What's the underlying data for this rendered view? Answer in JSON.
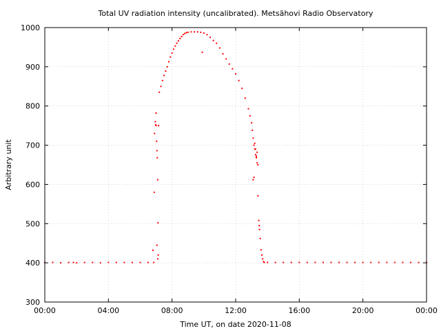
{
  "chart_data": {
    "type": "scatter",
    "title": "Total UV radiation intensity (uncalibrated). Metsähovi Radio Observatory",
    "xlabel": "Time UT, on date 2020-11-08",
    "ylabel": "Arbitrary unit",
    "xlim": [
      0,
      24
    ],
    "ylim": [
      300,
      1000
    ],
    "x_ticks": [
      {
        "value": 0,
        "label": "00:00"
      },
      {
        "value": 4,
        "label": "04:00"
      },
      {
        "value": 8,
        "label": "08:00"
      },
      {
        "value": 12,
        "label": "12:00"
      },
      {
        "value": 16,
        "label": "16:00"
      },
      {
        "value": 20,
        "label": "20:00"
      },
      {
        "value": 24,
        "label": "00:00"
      }
    ],
    "y_ticks": [
      {
        "value": 300,
        "label": "300"
      },
      {
        "value": 400,
        "label": "400"
      },
      {
        "value": 500,
        "label": "500"
      },
      {
        "value": 600,
        "label": "600"
      },
      {
        "value": 700,
        "label": "700"
      },
      {
        "value": 800,
        "label": "800"
      },
      {
        "value": 900,
        "label": "900"
      },
      {
        "value": 1000,
        "label": "1000"
      }
    ],
    "grid": true,
    "series": [
      {
        "color": "#ff0000",
        "points": [
          [
            0.0,
            401
          ],
          [
            0.5,
            401
          ],
          [
            1.0,
            400
          ],
          [
            1.5,
            401
          ],
          [
            1.8,
            401
          ],
          [
            2.0,
            400
          ],
          [
            2.5,
            401
          ],
          [
            3.0,
            401
          ],
          [
            3.5,
            400
          ],
          [
            4.0,
            401
          ],
          [
            4.5,
            401
          ],
          [
            5.0,
            401
          ],
          [
            5.5,
            401
          ],
          [
            6.0,
            401
          ],
          [
            6.5,
            401
          ],
          [
            6.85,
            401
          ],
          [
            6.8,
            432
          ],
          [
            6.88,
            580
          ],
          [
            6.95,
            760
          ],
          [
            6.97,
            752
          ],
          [
            7.0,
            782
          ],
          [
            7.03,
            710
          ],
          [
            7.05,
            686
          ],
          [
            7.07,
            668
          ],
          [
            7.1,
            612
          ],
          [
            7.12,
            502
          ],
          [
            7.05,
            445
          ],
          [
            7.1,
            410
          ],
          [
            7.13,
            420
          ],
          [
            6.9,
            730
          ],
          [
            7.0,
            750
          ],
          [
            7.15,
            750
          ],
          [
            7.2,
            835
          ],
          [
            7.3,
            850
          ],
          [
            7.4,
            865
          ],
          [
            7.5,
            878
          ],
          [
            7.6,
            889
          ],
          [
            7.7,
            900
          ],
          [
            7.8,
            913
          ],
          [
            7.9,
            925
          ],
          [
            8.0,
            935
          ],
          [
            8.1,
            945
          ],
          [
            8.2,
            953
          ],
          [
            8.3,
            960
          ],
          [
            8.4,
            966
          ],
          [
            8.5,
            972
          ],
          [
            8.6,
            977
          ],
          [
            8.7,
            982
          ],
          [
            8.8,
            985
          ],
          [
            8.9,
            987
          ],
          [
            9.0,
            988
          ],
          [
            9.2,
            989
          ],
          [
            9.4,
            989
          ],
          [
            9.6,
            989
          ],
          [
            9.8,
            988
          ],
          [
            9.9,
            937
          ],
          [
            10.0,
            986
          ],
          [
            10.2,
            982
          ],
          [
            10.4,
            975
          ],
          [
            10.6,
            967
          ],
          [
            10.8,
            960
          ],
          [
            11.0,
            948
          ],
          [
            11.2,
            933
          ],
          [
            11.4,
            920
          ],
          [
            11.6,
            907
          ],
          [
            11.8,
            895
          ],
          [
            12.0,
            882
          ],
          [
            12.2,
            865
          ],
          [
            12.4,
            845
          ],
          [
            12.6,
            820
          ],
          [
            12.8,
            793
          ],
          [
            12.9,
            775
          ],
          [
            13.0,
            757
          ],
          [
            13.05,
            738
          ],
          [
            13.1,
            718
          ],
          [
            13.15,
            700
          ],
          [
            13.2,
            690
          ],
          [
            13.25,
            676
          ],
          [
            13.3,
            668
          ],
          [
            13.35,
            655
          ],
          [
            13.4,
            650
          ],
          [
            13.1,
            612
          ],
          [
            13.15,
            618
          ],
          [
            13.2,
            705
          ],
          [
            13.25,
            690
          ],
          [
            13.3,
            672
          ],
          [
            13.35,
            682
          ],
          [
            13.4,
            571
          ],
          [
            13.45,
            508
          ],
          [
            13.48,
            495
          ],
          [
            13.5,
            485
          ],
          [
            13.55,
            462
          ],
          [
            13.6,
            433
          ],
          [
            13.65,
            420
          ],
          [
            13.7,
            410
          ],
          [
            13.75,
            403
          ],
          [
            13.8,
            401
          ],
          [
            14.0,
            401
          ],
          [
            14.5,
            401
          ],
          [
            15.0,
            401
          ],
          [
            15.5,
            401
          ],
          [
            16.0,
            401
          ],
          [
            16.5,
            401
          ],
          [
            17.0,
            401
          ],
          [
            17.5,
            401
          ],
          [
            18.0,
            401
          ],
          [
            18.5,
            401
          ],
          [
            19.0,
            401
          ],
          [
            19.5,
            401
          ],
          [
            20.0,
            401
          ],
          [
            20.5,
            401
          ],
          [
            21.0,
            401
          ],
          [
            21.5,
            401
          ],
          [
            22.0,
            401
          ],
          [
            22.5,
            401
          ],
          [
            23.0,
            401
          ],
          [
            23.5,
            401
          ],
          [
            24.0,
            401
          ]
        ]
      }
    ]
  }
}
